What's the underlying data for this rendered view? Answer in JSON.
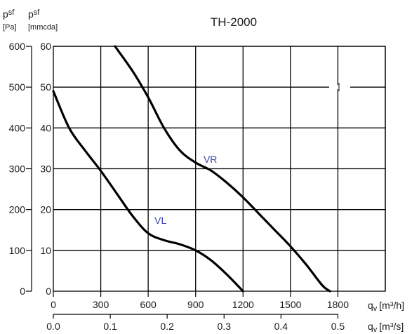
{
  "chart_data": {
    "type": "line",
    "title": "TH-2000",
    "y_axis_left": {
      "label_symbol": "p",
      "label_subscript": "sf",
      "label_unit": "[Pa]",
      "ticks": [
        "600",
        "500",
        "400",
        "300",
        "200",
        "100",
        "0"
      ],
      "ylim": [
        0,
        600
      ]
    },
    "y_axis_inner": {
      "label_symbol": "p",
      "label_subscript": "sf",
      "label_unit": "[mmcda]",
      "ticks": [
        "60",
        "50",
        "40",
        "30",
        "20",
        "10",
        "0"
      ],
      "ylim": [
        0,
        60
      ]
    },
    "x_axis_top": {
      "label_symbol": "q",
      "label_subscript": "v",
      "label_unit": "[m³/h]",
      "ticks": [
        "0",
        "300",
        "600",
        "900",
        "1200",
        "1500",
        "1800"
      ],
      "xlim": [
        0,
        2100
      ]
    },
    "x_axis_bottom": {
      "label_symbol": "q",
      "label_subscript": "v",
      "label_unit": "[m³/s]",
      "ticks": [
        "0.0",
        "0.1",
        "0.2",
        "0.3",
        "0.4",
        "0.5"
      ]
    },
    "grid": true,
    "series": [
      {
        "name": "VL",
        "x": [
          0,
          100,
          200,
          300,
          400,
          500,
          600,
          700,
          800,
          900,
          1000,
          1100,
          1200
        ],
        "y": [
          490,
          400,
          345,
          295,
          240,
          185,
          142,
          125,
          115,
          100,
          75,
          40,
          0
        ]
      },
      {
        "name": "VR",
        "x": [
          390,
          500,
          600,
          700,
          800,
          900,
          1000,
          1100,
          1200,
          1300,
          1400,
          1500,
          1600,
          1700,
          1750
        ],
        "y": [
          600,
          540,
          475,
          400,
          345,
          315,
          295,
          265,
          230,
          190,
          150,
          110,
          65,
          15,
          0
        ]
      }
    ]
  }
}
